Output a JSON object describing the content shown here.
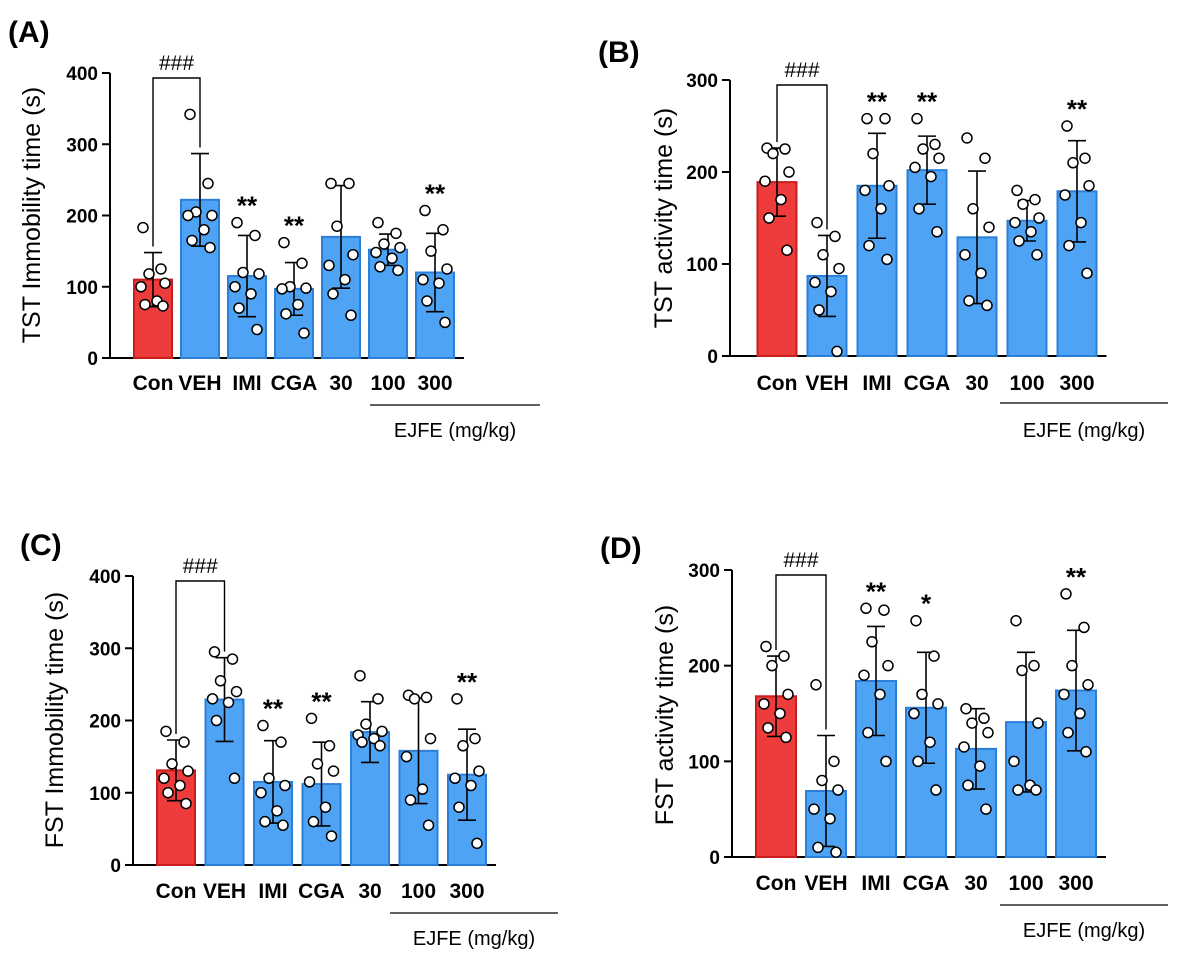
{
  "colors": {
    "control": "#EE3B3B",
    "control_edge": "#C81E1E",
    "treatment": "#4FA3F5",
    "treatment_edge": "#2B7FD8",
    "black": "#000000"
  },
  "chart_data": [
    {
      "panel": "(A)",
      "type": "bar",
      "ylabel": "TST Immobility time (s)",
      "ylim": [
        0,
        400
      ],
      "yticks": [
        "0",
        "100",
        "200",
        "300",
        "400"
      ],
      "categories": [
        "Con",
        "VEH",
        "IMI",
        "CGA",
        "30",
        "100",
        "300"
      ],
      "group_label": "EJFE (mg/kg)",
      "values": [
        110,
        222,
        115,
        97,
        170,
        152,
        120
      ],
      "sd": [
        38,
        65,
        57,
        37,
        72,
        22,
        55
      ],
      "points": [
        [
          183,
          125,
          118,
          105,
          100,
          80,
          75,
          73
        ],
        [
          342,
          245,
          205,
          200,
          200,
          180,
          165,
          155
        ],
        [
          190,
          172,
          120,
          118,
          100,
          90,
          70,
          40
        ],
        [
          162,
          133,
          100,
          98,
          97,
          75,
          62,
          35
        ],
        [
          245,
          245,
          185,
          145,
          130,
          110,
          90,
          60
        ],
        [
          190,
          175,
          160,
          155,
          148,
          140,
          128,
          123
        ],
        [
          207,
          180,
          150,
          125,
          110,
          105,
          80,
          50
        ]
      ],
      "significance": [
        "",
        "",
        "**",
        "**",
        "",
        "",
        "**"
      ],
      "comparison": {
        "from": 0,
        "to": 1,
        "label": "###"
      }
    },
    {
      "panel": "(B)",
      "type": "bar",
      "ylabel": "TST activity time (s)",
      "ylim": [
        0,
        300
      ],
      "yticks": [
        "0",
        "100",
        "200",
        "300"
      ],
      "categories": [
        "Con",
        "VEH",
        "IMI",
        "CGA",
        "30",
        "100",
        "300"
      ],
      "group_label": "EJFE (mg/kg)",
      "values": [
        189,
        87,
        185,
        202,
        129,
        147,
        179
      ],
      "sd": [
        37,
        44,
        57,
        37,
        72,
        22,
        55
      ],
      "points": [
        [
          226,
          225,
          220,
          200,
          190,
          170,
          150,
          115
        ],
        [
          145,
          130,
          110,
          95,
          80,
          70,
          50,
          5
        ],
        [
          258,
          258,
          220,
          185,
          180,
          160,
          120,
          105
        ],
        [
          258,
          230,
          225,
          215,
          205,
          195,
          160,
          135
        ],
        [
          237,
          215,
          160,
          140,
          110,
          90,
          60,
          55
        ],
        [
          180,
          170,
          165,
          150,
          145,
          135,
          125,
          110
        ],
        [
          250,
          215,
          210,
          185,
          175,
          145,
          120,
          90
        ]
      ],
      "significance": [
        "",
        "",
        "**",
        "**",
        "",
        "",
        "**"
      ],
      "comparison": {
        "from": 0,
        "to": 1,
        "label": "###"
      }
    },
    {
      "panel": "(C)",
      "type": "bar",
      "ylabel": "FST Immobility time (s)",
      "ylim": [
        0,
        400
      ],
      "yticks": [
        "0",
        "100",
        "200",
        "300",
        "400"
      ],
      "categories": [
        "Con",
        "VEH",
        "IMI",
        "CGA",
        "30",
        "100",
        "300"
      ],
      "group_label": "EJFE (mg/kg)",
      "values": [
        131,
        229,
        115,
        112,
        184,
        158,
        125
      ],
      "sd": [
        42,
        58,
        57,
        58,
        42,
        73,
        63
      ],
      "points": [
        [
          185,
          170,
          140,
          130,
          120,
          110,
          100,
          85
        ],
        [
          295,
          285,
          255,
          240,
          230,
          225,
          200,
          120
        ],
        [
          193,
          170,
          120,
          110,
          100,
          75,
          60,
          55
        ],
        [
          203,
          165,
          140,
          130,
          115,
          80,
          60,
          40
        ],
        [
          262,
          230,
          195,
          185,
          180,
          175,
          170,
          165
        ],
        [
          235,
          232,
          230,
          175,
          150,
          105,
          90,
          55
        ],
        [
          230,
          175,
          165,
          130,
          120,
          110,
          80,
          30
        ]
      ],
      "significance": [
        "",
        "",
        "**",
        "**",
        "",
        "",
        "**"
      ],
      "comparison": {
        "from": 0,
        "to": 1,
        "label": "###"
      }
    },
    {
      "panel": "(D)",
      "type": "bar",
      "ylabel": "FST activity time (s)",
      "ylim": [
        0,
        300
      ],
      "yticks": [
        "0",
        "100",
        "200",
        "300"
      ],
      "categories": [
        "Con",
        "VEH",
        "IMI",
        "CGA",
        "30",
        "100",
        "300"
      ],
      "group_label": "EJFE (mg/kg)",
      "values": [
        168,
        69,
        184,
        156,
        113,
        141,
        174
      ],
      "sd": [
        42,
        58,
        57,
        58,
        42,
        73,
        63
      ],
      "points": [
        [
          220,
          210,
          200,
          170,
          160,
          150,
          135,
          125
        ],
        [
          180,
          100,
          80,
          70,
          50,
          40,
          10,
          5
        ],
        [
          260,
          258,
          225,
          200,
          190,
          170,
          130,
          100
        ],
        [
          247,
          210,
          170,
          160,
          150,
          120,
          100,
          70
        ],
        [
          155,
          145,
          140,
          130,
          115,
          95,
          75,
          50
        ],
        [
          247,
          200,
          195,
          140,
          100,
          75,
          70,
          70
        ],
        [
          275,
          240,
          200,
          180,
          170,
          150,
          130,
          110
        ]
      ],
      "significance": [
        "",
        "",
        "**",
        "*",
        "",
        "",
        "**"
      ],
      "comparison": {
        "from": 0,
        "to": 1,
        "label": "###"
      }
    }
  ]
}
